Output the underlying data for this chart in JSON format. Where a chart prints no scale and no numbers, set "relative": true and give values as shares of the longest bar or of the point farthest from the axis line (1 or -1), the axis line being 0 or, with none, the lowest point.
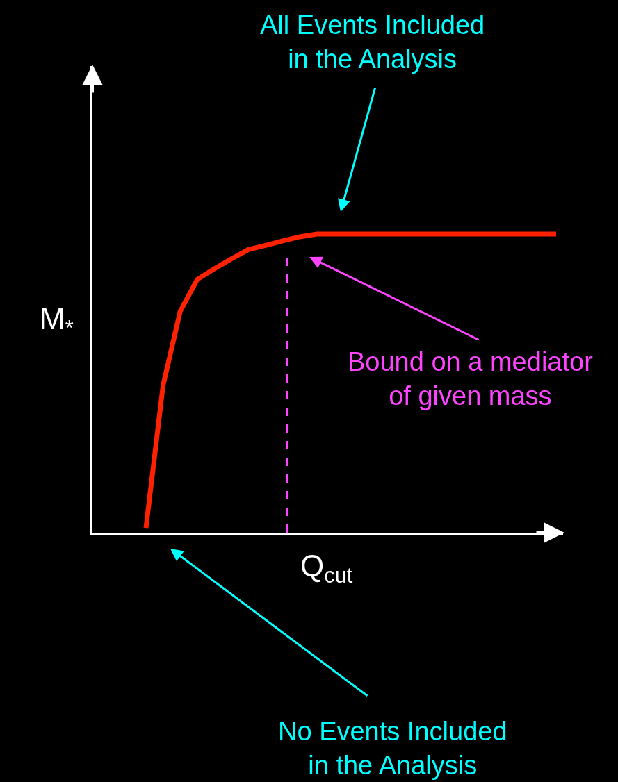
{
  "chart_data": {
    "type": "line",
    "relative": true,
    "xlabel": "Q$_{cut}$",
    "ylabel": "M$_{*}$",
    "categories": [
      null,
      null,
      null,
      null,
      null,
      null,
      null,
      null,
      null,
      null,
      null,
      null,
      null,
      null,
      null,
      null,
      null,
      null,
      null,
      null,
      null,
      null,
      null,
      null,
      null
    ],
    "series": [
      {
        "color": "#ff2200",
        "values": [
          0.016,
          0.493,
          0.741,
          0.848,
          0.884,
          0.917,
          0.948,
          0.962,
          0.977,
          0.991,
          1.0,
          1.0,
          1.0,
          1.0,
          1.0,
          1.0,
          1.0,
          1.0,
          1.0,
          1.0,
          1.0,
          1.0,
          1.0,
          1.0,
          1.0
        ]
      }
    ],
    "annotations": [
      "All Events Included\nin the Analysis",
      "Bound on a mediator\nof given mass",
      "No Events Included\nin the Analysis"
    ],
    "grid": false,
    "marker": "none",
    "line_style": "solid"
  }
}
